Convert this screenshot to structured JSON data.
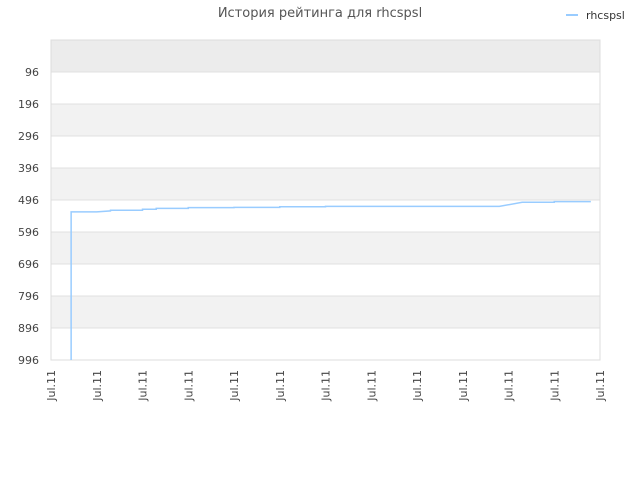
{
  "chart_data": {
    "type": "line",
    "title": "История рейтинга для rhcspsl",
    "legend": {
      "position": "top-right",
      "entries": [
        "rhcspsl"
      ]
    },
    "colors": {
      "series": "#99ccff",
      "band_alt": "#f2f2f2",
      "band_top": "#ececec",
      "grid": "#e0e0e0"
    },
    "grid": true,
    "y_axis": {
      "inverted": true,
      "range": [
        996,
        -4
      ],
      "ticks": [
        96,
        196,
        296,
        396,
        496,
        596,
        696,
        796,
        896,
        996
      ]
    },
    "x_axis": {
      "range": [
        0,
        12
      ],
      "tick_labels": [
        "Jul.11",
        "Jul.11",
        "Jul.11",
        "Jul.11",
        "Jul.11",
        "Jul.11",
        "Jul.11",
        "Jul.11",
        "Jul.11",
        "Jul.11",
        "Jul.11",
        "Jul.11",
        "Jul.11"
      ]
    },
    "series": [
      {
        "name": "rhcspsl",
        "x": [
          0.44,
          0.44,
          1.0,
          1.3,
          1.3,
          2.0,
          2.0,
          2.3,
          2.3,
          3.0,
          3.0,
          4.0,
          4.0,
          5.0,
          5.0,
          6.0,
          6.0,
          9.8,
          10.3,
          11.0,
          11.0,
          11.8
        ],
        "y": [
          996,
          533,
          533,
          530,
          528,
          528,
          525,
          525,
          522,
          522,
          520,
          520,
          519,
          519,
          517,
          517,
          516,
          516,
          503,
          503,
          501,
          501
        ]
      }
    ]
  }
}
